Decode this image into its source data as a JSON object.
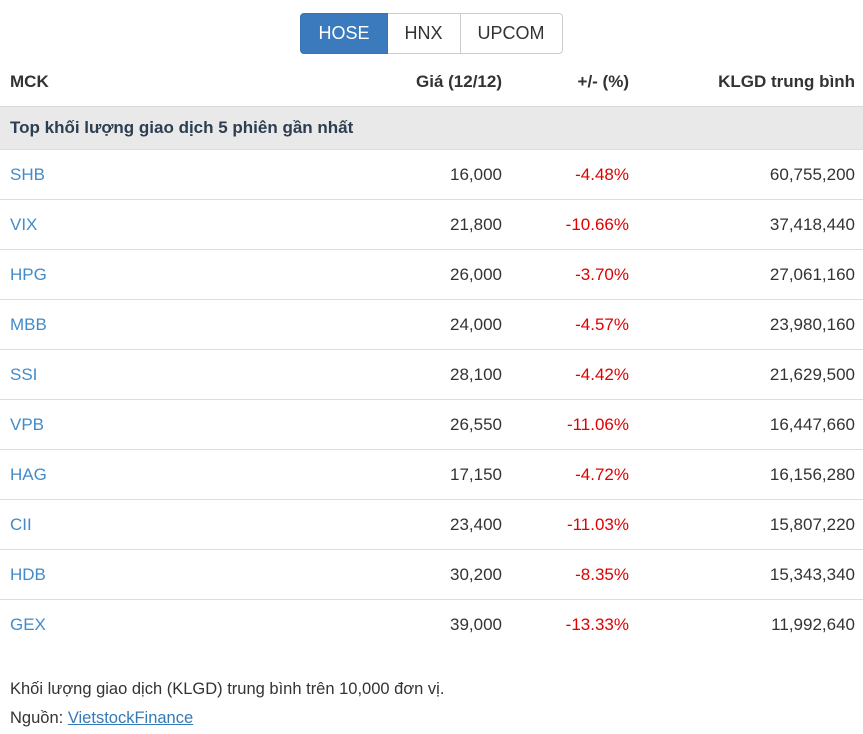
{
  "tabs": [
    {
      "label": "HOSE",
      "active": true
    },
    {
      "label": "HNX",
      "active": false
    },
    {
      "label": "UPCOM",
      "active": false
    }
  ],
  "table": {
    "columns": [
      "MCK",
      "Giá (12/12)",
      "+/- (%)",
      "KLGD trung bình"
    ],
    "section_title": "Top khối lượng giao dịch 5 phiên gần nhất",
    "rows": [
      {
        "ticker": "SHB",
        "price": "16,000",
        "change": "-4.48%",
        "volume": "60,755,200"
      },
      {
        "ticker": "VIX",
        "price": "21,800",
        "change": "-10.66%",
        "volume": "37,418,440"
      },
      {
        "ticker": "HPG",
        "price": "26,000",
        "change": "-3.70%",
        "volume": "27,061,160"
      },
      {
        "ticker": "MBB",
        "price": "24,000",
        "change": "-4.57%",
        "volume": "23,980,160"
      },
      {
        "ticker": "SSI",
        "price": "28,100",
        "change": "-4.42%",
        "volume": "21,629,500"
      },
      {
        "ticker": "VPB",
        "price": "26,550",
        "change": "-11.06%",
        "volume": "16,447,660"
      },
      {
        "ticker": "HAG",
        "price": "17,150",
        "change": "-4.72%",
        "volume": "16,156,280"
      },
      {
        "ticker": "CII",
        "price": "23,400",
        "change": "-11.03%",
        "volume": "15,807,220"
      },
      {
        "ticker": "HDB",
        "price": "30,200",
        "change": "-8.35%",
        "volume": "15,343,340"
      },
      {
        "ticker": "GEX",
        "price": "39,000",
        "change": "-13.33%",
        "volume": "11,992,640"
      }
    ]
  },
  "footer": {
    "note": "Khối lượng giao dịch (KLGD) trung bình trên 10,000 đơn vị.",
    "source_label": "Nguồn:",
    "source_link": "VietstockFinance"
  },
  "colors": {
    "active_tab": "#3a7abd",
    "ticker_link": "#428bca",
    "negative_change": "#e00000",
    "section_background": "#e9e9e9",
    "source_link": "#337ab7",
    "text": "#333333"
  }
}
